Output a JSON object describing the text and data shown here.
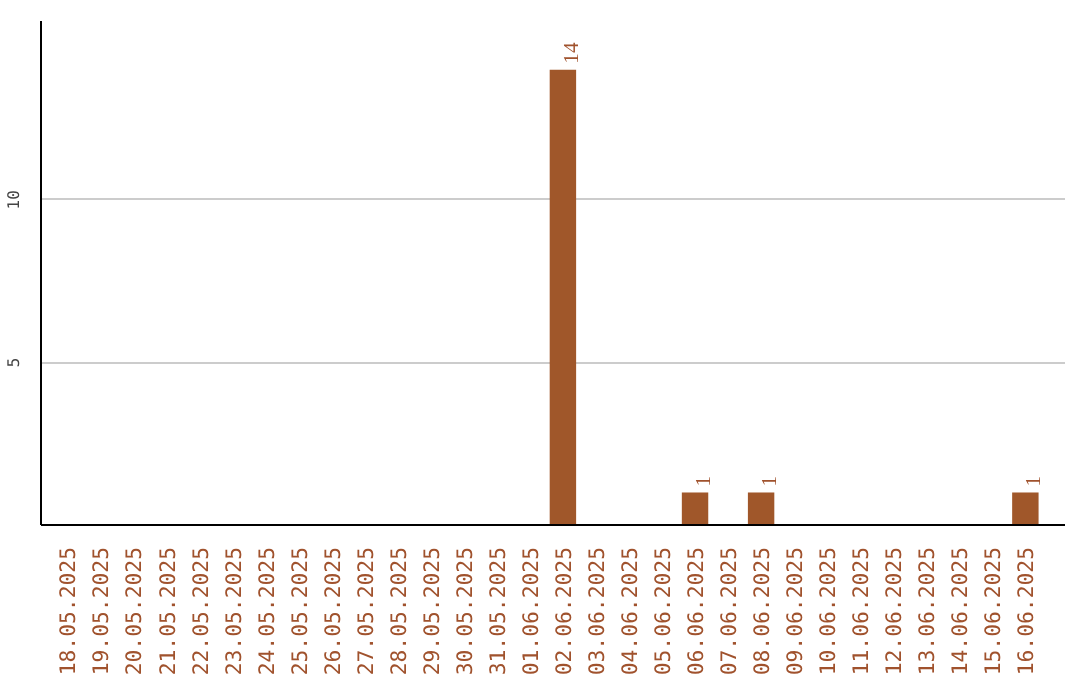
{
  "chart_data": {
    "type": "bar",
    "categories": [
      "18.05.2025",
      "19.05.2025",
      "20.05.2025",
      "21.05.2025",
      "22.05.2025",
      "23.05.2025",
      "24.05.2025",
      "25.05.2025",
      "26.05.2025",
      "27.05.2025",
      "28.05.2025",
      "29.05.2025",
      "30.05.2025",
      "31.05.2025",
      "01.06.2025",
      "02.06.2025",
      "03.06.2025",
      "04.06.2025",
      "05.06.2025",
      "06.06.2025",
      "07.06.2025",
      "08.06.2025",
      "09.06.2025",
      "10.06.2025",
      "11.06.2025",
      "12.06.2025",
      "13.06.2025",
      "14.06.2025",
      "15.06.2025",
      "16.06.2025"
    ],
    "values": [
      0,
      0,
      0,
      0,
      0,
      0,
      0,
      0,
      0,
      0,
      0,
      0,
      0,
      0,
      0,
      14,
      0,
      0,
      0,
      1,
      0,
      1,
      0,
      0,
      0,
      0,
      0,
      0,
      0,
      1
    ],
    "value_labels": [
      null,
      null,
      null,
      null,
      null,
      null,
      null,
      null,
      null,
      null,
      null,
      null,
      null,
      null,
      null,
      "14",
      null,
      null,
      null,
      "1",
      null,
      "1",
      null,
      null,
      null,
      null,
      null,
      null,
      null,
      "1"
    ],
    "color": "#a0572a",
    "ylim": [
      0,
      15.5
    ],
    "yticks": [
      5,
      10
    ],
    "grid": "y"
  }
}
